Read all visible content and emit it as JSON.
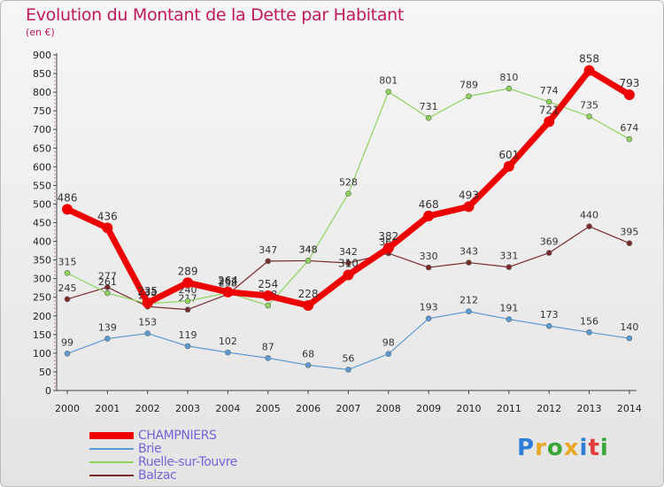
{
  "chart_data": {
    "type": "line",
    "title": "Evolution du Montant de la Dette par Habitant",
    "subtitle": "(en €)",
    "x": [
      "2000",
      "2001",
      "2002",
      "2003",
      "2004",
      "2005",
      "2006",
      "2007",
      "2008",
      "2009",
      "2010",
      "2011",
      "2012",
      "2013",
      "2014"
    ],
    "ylim": [
      0,
      900
    ],
    "yticks": [
      0,
      50,
      100,
      150,
      200,
      250,
      300,
      350,
      400,
      450,
      500,
      550,
      600,
      650,
      700,
      750,
      800,
      850,
      900
    ],
    "grid": false,
    "legend_position": "bottom-left",
    "series": [
      {
        "name": "CHAMPNIERS",
        "color": "#ee0000",
        "values": [
          486,
          436,
          235,
          289,
          264,
          254,
          228,
          310,
          382,
          468,
          493,
          601,
          721,
          858,
          793
        ]
      },
      {
        "name": "Brie",
        "color": "#5a9ad5",
        "values": [
          99,
          139,
          153,
          119,
          102,
          87,
          68,
          56,
          98,
          193,
          212,
          191,
          173,
          156,
          140
        ]
      },
      {
        "name": "Ruelle-sur-Touvre",
        "color": "#8ed35a",
        "values": [
          315,
          261,
          233,
          240,
          262,
          228,
          348,
          528,
          801,
          731,
          789,
          810,
          774,
          735,
          674
        ]
      },
      {
        "name": "Balzac",
        "color": "#7b2a2a",
        "values": [
          245,
          277,
          225,
          217,
          258,
          347,
          348,
          342,
          368,
          330,
          343,
          331,
          369,
          440,
          395
        ]
      }
    ]
  },
  "logo": {
    "letters": [
      "P",
      "r",
      "o",
      "x",
      "i",
      "t",
      "i"
    ]
  }
}
